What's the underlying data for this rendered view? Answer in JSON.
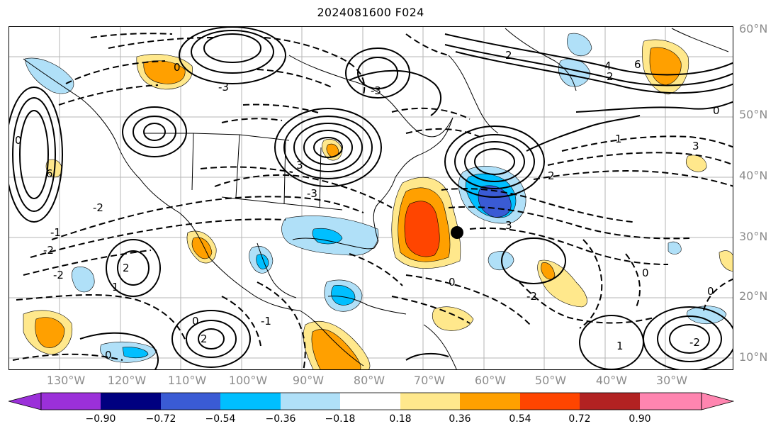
{
  "title": "2024081600 F024",
  "map": {
    "lat_labels": [
      "60°N",
      "50°N",
      "40°N",
      "30°N",
      "20°N",
      "10°N"
    ],
    "lon_labels": [
      "130°W",
      "120°W",
      "110°W",
      "100°W",
      "90°W",
      "80°W",
      "70°W",
      "60°W",
      "50°W",
      "40°W",
      "30°W"
    ],
    "contour_labels": [
      "0",
      "1",
      "2",
      "3",
      "4",
      "6",
      "-1",
      "-2",
      "-3"
    ],
    "marker": "storm-center-dot"
  },
  "colorbar": {
    "ticks": [
      "−0.90",
      "−0.72",
      "−0.54",
      "−0.36",
      "−0.18",
      "0.18",
      "0.36",
      "0.54",
      "0.72",
      "0.90"
    ],
    "colors": [
      "#9b30d9",
      "#000080",
      "#3a5bd4",
      "#00bfff",
      "#b0e0f8",
      "#ffffff",
      "#ffe88c",
      "#ffa000",
      "#ff4500",
      "#b22222",
      "#ff85b0"
    ]
  }
}
